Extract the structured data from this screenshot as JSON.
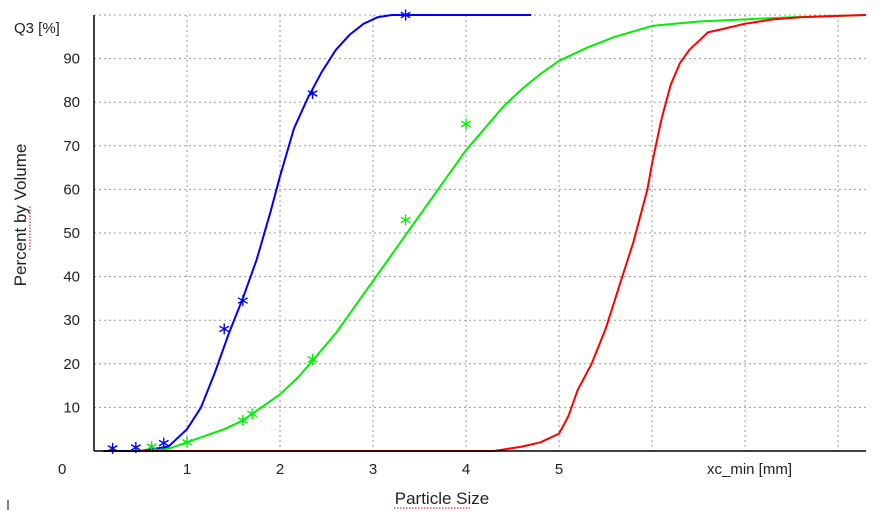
{
  "chart_data": {
    "type": "line",
    "title": "",
    "xlabel": "Particle Size",
    "ylabel": "Percent by Volume",
    "y_unit_label": "Q3 [%]",
    "x_unit_label": "xc_min [mm]",
    "origin_label": "0",
    "xlim": [
      0,
      8.3
    ],
    "ylim": [
      0,
      100
    ],
    "x_tick_values": [
      1,
      2,
      3,
      4,
      5
    ],
    "x_tick_labels": [
      "1",
      "2",
      "3",
      "4",
      "5"
    ],
    "x_grid_values": [
      1,
      2,
      3,
      4,
      5,
      6,
      7,
      8
    ],
    "y_tick_values": [
      10,
      20,
      30,
      40,
      50,
      60,
      70,
      80,
      90
    ],
    "y_tick_labels": [
      "10",
      "20",
      "30",
      "40",
      "50",
      "60",
      "70",
      "80",
      "90"
    ],
    "grid": true,
    "series": [
      {
        "color": "#0000ff",
        "x": [
          0.1,
          0.5,
          0.8,
          1.0,
          1.15,
          1.3,
          1.45,
          1.6,
          1.75,
          1.9,
          2.0,
          2.15,
          2.3,
          2.45,
          2.6,
          2.75,
          2.9,
          3.05,
          3.2,
          3.35,
          3.6,
          4.0,
          4.7
        ],
        "y": [
          0,
          0,
          1,
          5,
          10,
          18,
          27,
          35,
          44,
          55,
          63,
          74,
          81,
          87,
          92,
          95.5,
          98,
          99.5,
          100,
          100,
          100,
          100,
          100
        ],
        "markers": [
          [
            0.2,
            0.6
          ],
          [
            0.45,
            0.8
          ],
          [
            0.75,
            1.8
          ],
          [
            1.4,
            28
          ],
          [
            1.6,
            34.5
          ],
          [
            2.35,
            82
          ],
          [
            3.35,
            100
          ]
        ]
      },
      {
        "color": "#00ee00",
        "x": [
          0.6,
          0.8,
          1.0,
          1.2,
          1.4,
          1.6,
          1.8,
          2.0,
          2.2,
          2.4,
          2.6,
          2.8,
          3.0,
          3.2,
          3.4,
          3.6,
          3.8,
          4.0,
          4.2,
          4.4,
          4.6,
          4.8,
          5.0,
          5.3,
          5.6,
          6.0,
          6.5,
          7.0,
          7.5,
          8.0,
          8.3
        ],
        "y": [
          0,
          0.5,
          2,
          3.5,
          5,
          7,
          10,
          13,
          17,
          22,
          27,
          33,
          39,
          45,
          51,
          57,
          63,
          69,
          74,
          79,
          83,
          86.5,
          89.5,
          92.5,
          95,
          97.5,
          98.5,
          99,
          99.5,
          99.8,
          100
        ],
        "markers": [
          [
            0.62,
            1
          ],
          [
            1.0,
            2
          ],
          [
            1.6,
            7
          ],
          [
            1.7,
            8.5
          ],
          [
            2.35,
            21
          ],
          [
            3.35,
            53
          ],
          [
            4.0,
            75
          ]
        ]
      },
      {
        "color": "#ff0000",
        "x": [
          0.5,
          4.3,
          4.6,
          4.8,
          5.0,
          5.1,
          5.2,
          5.35,
          5.5,
          5.65,
          5.8,
          5.95,
          6.0,
          6.1,
          6.2,
          6.3,
          6.4,
          6.5,
          6.6,
          6.8,
          7.0,
          7.3,
          7.6,
          8.0,
          8.3
        ],
        "y": [
          0,
          0,
          1,
          2,
          4,
          8,
          14,
          20,
          28,
          38,
          48,
          60,
          66,
          76,
          84,
          89,
          92,
          94,
          96,
          97,
          98,
          99,
          99.5,
          99.8,
          100
        ]
      }
    ]
  }
}
